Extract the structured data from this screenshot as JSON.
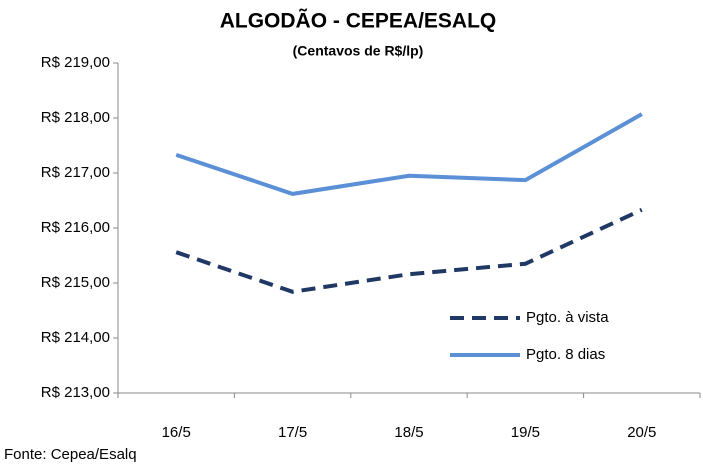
{
  "chart_data": {
    "type": "line",
    "title": "ALGODÃO - CEPEA/ESALQ",
    "subtitle": "(Centavos de R$/lp)",
    "source": "Fonte: Cepea/Esalq",
    "categories": [
      "16/5",
      "17/5",
      "18/5",
      "19/5",
      "20/5"
    ],
    "series": [
      {
        "name": "Pgto. à vista",
        "color": "#1f3864",
        "style": "dashed",
        "values": [
          215.56,
          214.84,
          215.16,
          215.35,
          216.33
        ]
      },
      {
        "name": "Pgto. 8 dias",
        "color": "#5b8fd6",
        "style": "solid",
        "values": [
          217.33,
          216.62,
          216.95,
          216.87,
          218.07
        ]
      }
    ],
    "ylim": [
      213,
      219
    ],
    "yticks": [
      {
        "value": 213,
        "label": "R$ 213,00"
      },
      {
        "value": 214,
        "label": "R$ 214,00"
      },
      {
        "value": 215,
        "label": "R$ 215,00"
      },
      {
        "value": 216,
        "label": "R$ 216,00"
      },
      {
        "value": 217,
        "label": "R$ 217,00"
      },
      {
        "value": 218,
        "label": "R$ 218,00"
      },
      {
        "value": 219,
        "label": "R$ 219,00"
      }
    ],
    "grid": false,
    "legend": "right"
  }
}
